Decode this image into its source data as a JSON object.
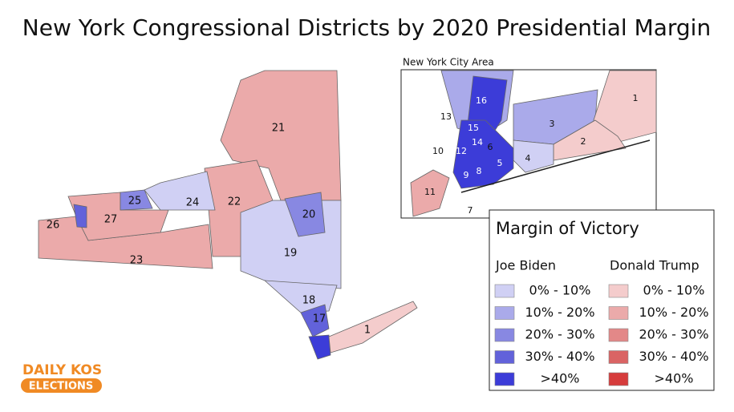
{
  "title": "New York Congressional Districts by 2020 Presidential Margin",
  "map": {
    "districts": [
      "21",
      "22",
      "23",
      "24",
      "25",
      "26",
      "27",
      "19",
      "20",
      "18",
      "17",
      "1"
    ]
  },
  "inset": {
    "title": "New York City Area",
    "districts": [
      "16",
      "13",
      "15",
      "14",
      "10",
      "12",
      "6",
      "3",
      "1",
      "2",
      "4",
      "5",
      "8",
      "9",
      "11",
      "7"
    ]
  },
  "legend": {
    "title": "Margin of Victory",
    "columns": [
      {
        "name": "Joe Biden",
        "colors": [
          "#d0d0f4",
          "#aaaaea",
          "#8888e2",
          "#6262da",
          "#3c3cd8"
        ],
        "items": [
          "0% - 10%",
          "10% - 20%",
          "20% - 30%",
          "30% - 40%",
          ">40%"
        ]
      },
      {
        "name": "Donald Trump",
        "colors": [
          "#f4cccc",
          "#ebaaaa",
          "#e38888",
          "#da6464",
          "#d63c3c"
        ],
        "items": [
          "0% - 10%",
          "10% - 20%",
          "20% - 30%",
          "30% - 40%",
          ">40%"
        ]
      }
    ]
  },
  "logo": {
    "line1": "DAILY KOS",
    "line2": "ELECTIONS"
  }
}
